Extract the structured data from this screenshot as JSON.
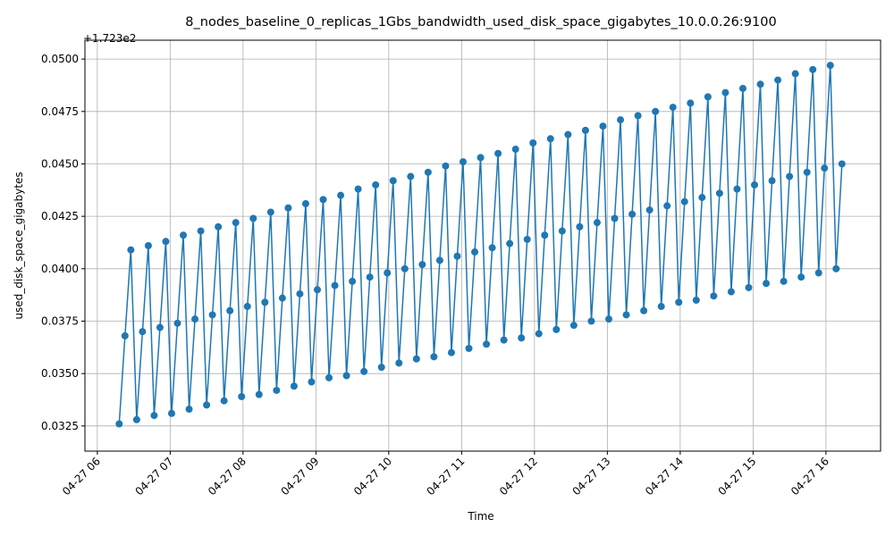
{
  "chart_data": {
    "type": "line",
    "title": "8_nodes_baseline_0_replicas_1Gbs_bandwidth_used_disk_space_gigabytes_10.0.0.26:9100",
    "x_label": "Time",
    "y_label": "used_disk_space_gigabytes",
    "y_offset_label": "+1.723e2",
    "color": "#1f77b4",
    "markers": true,
    "grid": true,
    "xlim": [
      5.83,
      16.75
    ],
    "ylim": [
      0.0313,
      0.0509
    ],
    "xticks": [
      {
        "value": 6,
        "label": "04-27 06"
      },
      {
        "value": 7,
        "label": "04-27 07"
      },
      {
        "value": 8,
        "label": "04-27 08"
      },
      {
        "value": 9,
        "label": "04-27 09"
      },
      {
        "value": 10,
        "label": "04-27 10"
      },
      {
        "value": 11,
        "label": "04-27 11"
      },
      {
        "value": 12,
        "label": "04-27 12"
      },
      {
        "value": 13,
        "label": "04-27 13"
      },
      {
        "value": 14,
        "label": "04-27 14"
      },
      {
        "value": 15,
        "label": "04-27 15"
      },
      {
        "value": 16,
        "label": "04-27 16"
      }
    ],
    "yticks": [
      0.0325,
      {
        "value": 0.035,
        "label": "0.0350"
      },
      0.0375,
      {
        "value": 0.04,
        "label": "0.0400"
      },
      0.0425,
      {
        "value": 0.045,
        "label": "0.0450"
      },
      0.0475,
      {
        "value": 0.05,
        "label": "0.0500"
      }
    ],
    "x": [
      6.3,
      6.38,
      6.46,
      6.54,
      6.62,
      6.7,
      6.78,
      6.86,
      6.94,
      7.02,
      7.1,
      7.18,
      7.26,
      7.34,
      7.42,
      7.5,
      7.58,
      7.66,
      7.74,
      7.82,
      7.9,
      7.98,
      8.06,
      8.14,
      8.22,
      8.3,
      8.38,
      8.46,
      8.54,
      8.62,
      8.7,
      8.78,
      8.86,
      8.94,
      9.02,
      9.1,
      9.18,
      9.26,
      9.34,
      9.42,
      9.5,
      9.58,
      9.66,
      9.74,
      9.82,
      9.9,
      9.98,
      10.06,
      10.14,
      10.22,
      10.3,
      10.38,
      10.46,
      10.54,
      10.62,
      10.7,
      10.78,
      10.86,
      10.94,
      11.02,
      11.1,
      11.18,
      11.26,
      11.34,
      11.42,
      11.5,
      11.58,
      11.66,
      11.74,
      11.82,
      11.9,
      11.98,
      12.06,
      12.14,
      12.22,
      12.3,
      12.38,
      12.46,
      12.54,
      12.62,
      12.7,
      12.78,
      12.86,
      12.94,
      13.02,
      13.1,
      13.18,
      13.26,
      13.34,
      13.42,
      13.5,
      13.58,
      13.66,
      13.74,
      13.82,
      13.9,
      13.98,
      14.06,
      14.14,
      14.22,
      14.3,
      14.38,
      14.46,
      14.54,
      14.62,
      14.7,
      14.78,
      14.86,
      14.94,
      15.02,
      15.1,
      15.18,
      15.26,
      15.34,
      15.42,
      15.5,
      15.58,
      15.66,
      15.74,
      15.82,
      15.9,
      15.98,
      16.06,
      16.14,
      16.22
    ],
    "values": [
      0.0326,
      0.0368,
      0.0409,
      0.0328,
      0.037,
      0.0411,
      0.033,
      0.0372,
      0.0413,
      0.0331,
      0.0374,
      0.0416,
      0.0333,
      0.0376,
      0.0418,
      0.0335,
      0.0378,
      0.042,
      0.0337,
      0.038,
      0.0422,
      0.0339,
      0.0382,
      0.0424,
      0.034,
      0.0384,
      0.0427,
      0.0342,
      0.0386,
      0.0429,
      0.0344,
      0.0388,
      0.0431,
      0.0346,
      0.039,
      0.0433,
      0.0348,
      0.0392,
      0.0435,
      0.0349,
      0.0394,
      0.0438,
      0.0351,
      0.0396,
      0.044,
      0.0353,
      0.0398,
      0.0442,
      0.0355,
      0.04,
      0.0444,
      0.0357,
      0.0402,
      0.0446,
      0.0358,
      0.0404,
      0.0449,
      0.036,
      0.0406,
      0.0451,
      0.0362,
      0.0408,
      0.0453,
      0.0364,
      0.041,
      0.0455,
      0.0366,
      0.0412,
      0.0457,
      0.0367,
      0.0414,
      0.046,
      0.0369,
      0.0416,
      0.0462,
      0.0371,
      0.0418,
      0.0464,
      0.0373,
      0.042,
      0.0466,
      0.0375,
      0.0422,
      0.0468,
      0.0376,
      0.0424,
      0.0471,
      0.0378,
      0.0426,
      0.0473,
      0.038,
      0.0428,
      0.0475,
      0.0382,
      0.043,
      0.0477,
      0.0384,
      0.0432,
      0.0479,
      0.0385,
      0.0434,
      0.0482,
      0.0387,
      0.0436,
      0.0484,
      0.0389,
      0.0438,
      0.0486,
      0.0391,
      0.044,
      0.0488,
      0.0393,
      0.0442,
      0.049,
      0.0394,
      0.0444,
      0.0493,
      0.0396,
      0.0446,
      0.0495,
      0.0398,
      0.0448,
      0.0497,
      0.04,
      0.045
    ]
  }
}
